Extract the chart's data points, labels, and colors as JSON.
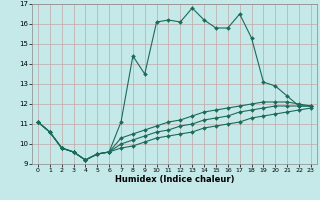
{
  "xlabel": "Humidex (Indice chaleur)",
  "ylabel": "",
  "background_color": "#c5e8e8",
  "grid_color": "#c0a8a8",
  "line_color": "#1a6b5a",
  "xlim": [
    -0.5,
    23.5
  ],
  "ylim": [
    9,
    17
  ],
  "xticks": [
    0,
    1,
    2,
    3,
    4,
    5,
    6,
    7,
    8,
    9,
    10,
    11,
    12,
    13,
    14,
    15,
    16,
    17,
    18,
    19,
    20,
    21,
    22,
    23
  ],
  "yticks": [
    9,
    10,
    11,
    12,
    13,
    14,
    15,
    16,
    17
  ],
  "series": [
    {
      "x": [
        0,
        1,
        2,
        3,
        4,
        5,
        6,
        7,
        8,
        9,
        10,
        11,
        12,
        13,
        14,
        15,
        16,
        17,
        18,
        19,
        20,
        21,
        22,
        23
      ],
      "y": [
        11.1,
        10.6,
        9.8,
        9.6,
        9.2,
        9.5,
        9.6,
        11.1,
        14.4,
        13.5,
        16.1,
        16.2,
        16.1,
        16.8,
        16.2,
        15.8,
        15.8,
        16.5,
        15.3,
        13.1,
        12.9,
        12.4,
        11.9,
        11.9
      ]
    },
    {
      "x": [
        0,
        1,
        2,
        3,
        4,
        5,
        6,
        7,
        8,
        9,
        10,
        11,
        12,
        13,
        14,
        15,
        16,
        17,
        18,
        19,
        20,
        21,
        22,
        23
      ],
      "y": [
        11.1,
        10.6,
        9.8,
        9.6,
        9.2,
        9.5,
        9.6,
        10.3,
        10.5,
        10.7,
        10.9,
        11.1,
        11.2,
        11.4,
        11.6,
        11.7,
        11.8,
        11.9,
        12.0,
        12.1,
        12.1,
        12.1,
        12.0,
        11.9
      ]
    },
    {
      "x": [
        0,
        1,
        2,
        3,
        4,
        5,
        6,
        7,
        8,
        9,
        10,
        11,
        12,
        13,
        14,
        15,
        16,
        17,
        18,
        19,
        20,
        21,
        22,
        23
      ],
      "y": [
        11.1,
        10.6,
        9.8,
        9.6,
        9.2,
        9.5,
        9.6,
        10.0,
        10.2,
        10.4,
        10.6,
        10.7,
        10.9,
        11.0,
        11.2,
        11.3,
        11.4,
        11.6,
        11.7,
        11.8,
        11.9,
        11.9,
        11.9,
        11.9
      ]
    },
    {
      "x": [
        0,
        1,
        2,
        3,
        4,
        5,
        6,
        7,
        8,
        9,
        10,
        11,
        12,
        13,
        14,
        15,
        16,
        17,
        18,
        19,
        20,
        21,
        22,
        23
      ],
      "y": [
        11.1,
        10.6,
        9.8,
        9.6,
        9.2,
        9.5,
        9.6,
        9.8,
        9.9,
        10.1,
        10.3,
        10.4,
        10.5,
        10.6,
        10.8,
        10.9,
        11.0,
        11.1,
        11.3,
        11.4,
        11.5,
        11.6,
        11.7,
        11.8
      ]
    }
  ],
  "marker": "D",
  "marker_size": 2.0,
  "line_width": 0.8
}
